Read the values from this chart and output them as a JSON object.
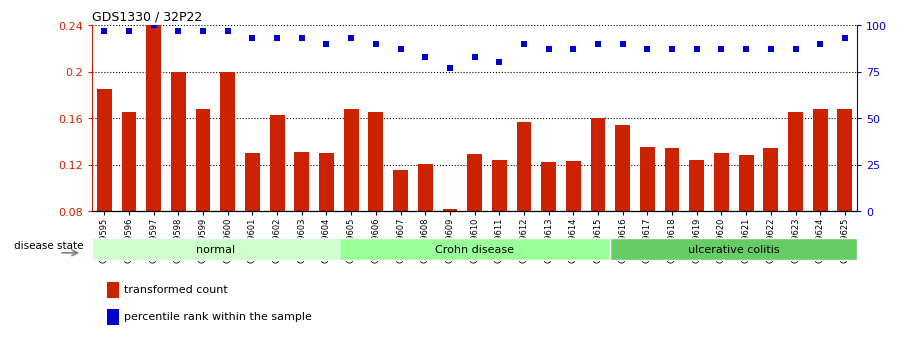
{
  "title": "GDS1330 / 32P22",
  "categories": [
    "GSM29595",
    "GSM29596",
    "GSM29597",
    "GSM29598",
    "GSM29599",
    "GSM29600",
    "GSM29601",
    "GSM29602",
    "GSM29603",
    "GSM29604",
    "GSM29605",
    "GSM29606",
    "GSM29607",
    "GSM29608",
    "GSM29609",
    "GSM29610",
    "GSM29611",
    "GSM29612",
    "GSM29613",
    "GSM29614",
    "GSM29615",
    "GSM29616",
    "GSM29617",
    "GSM29618",
    "GSM29619",
    "GSM29620",
    "GSM29621",
    "GSM29622",
    "GSM29623",
    "GSM29624",
    "GSM29625"
  ],
  "bar_values": [
    0.185,
    0.165,
    0.24,
    0.2,
    0.168,
    0.2,
    0.13,
    0.163,
    0.131,
    0.13,
    0.168,
    0.165,
    0.115,
    0.121,
    0.082,
    0.129,
    0.124,
    0.157,
    0.122,
    0.123,
    0.16,
    0.154,
    0.135,
    0.134,
    0.124,
    0.13,
    0.128,
    0.134,
    0.165,
    0.168,
    0.168
  ],
  "dot_values": [
    97,
    97,
    100,
    97,
    97,
    97,
    93,
    93,
    93,
    90,
    93,
    90,
    87,
    83,
    77,
    83,
    80,
    90,
    87,
    87,
    90,
    90,
    87,
    87,
    87,
    87,
    87,
    87,
    87,
    90,
    93
  ],
  "groups": [
    {
      "label": "normal",
      "start": 0,
      "end": 10,
      "color": "#ccffcc"
    },
    {
      "label": "Crohn disease",
      "start": 10,
      "end": 21,
      "color": "#99ff99"
    },
    {
      "label": "ulcerative colitis",
      "start": 21,
      "end": 31,
      "color": "#66cc66"
    }
  ],
  "ylim_left": [
    0.08,
    0.24
  ],
  "ylim_right": [
    0,
    100
  ],
  "yticks_left": [
    0.08,
    0.12,
    0.16,
    0.2,
    0.24
  ],
  "yticks_right": [
    0,
    25,
    50,
    75,
    100
  ],
  "bar_color": "#cc2200",
  "dot_color": "#0000cc",
  "bar_width": 0.6,
  "legend_items": [
    "transformed count",
    "percentile rank within the sample"
  ],
  "disease_state_label": "disease state",
  "background_color": "#ffffff"
}
